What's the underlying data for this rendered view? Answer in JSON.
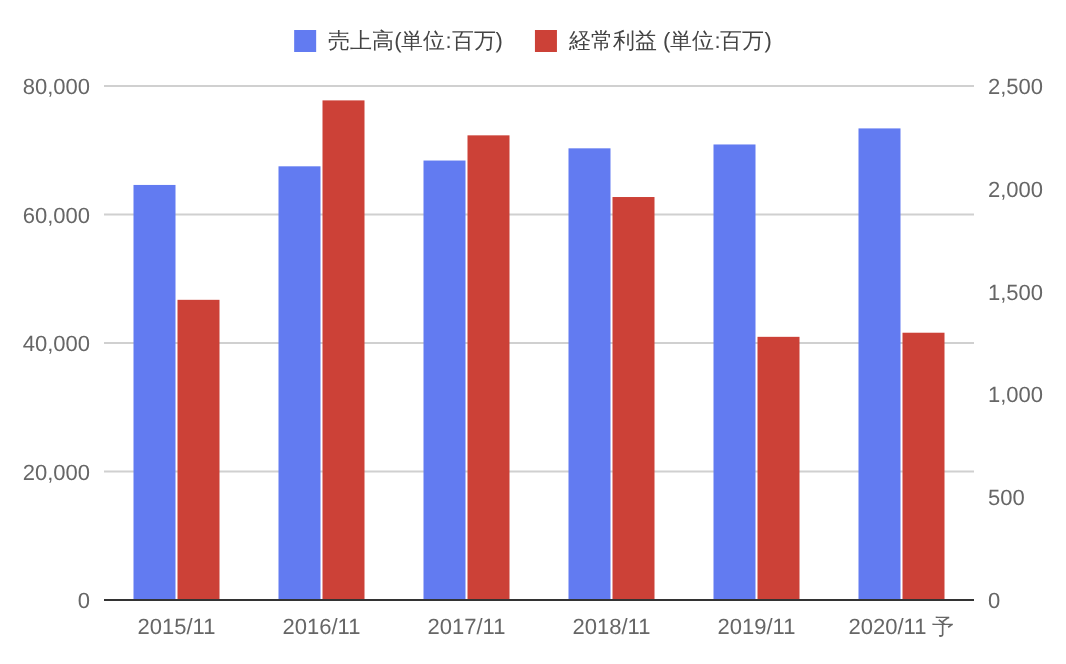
{
  "chart_data": {
    "type": "bar",
    "categories": [
      "2015/11",
      "2016/11",
      "2017/11",
      "2018/11",
      "2019/11",
      "2020/11 予"
    ],
    "series": [
      {
        "name": "売上高(単位:百万)",
        "color": "#627bf1",
        "values": [
          64600,
          67500,
          68400,
          70300,
          70900,
          73400
        ]
      },
      {
        "name": "経常利益 (単位:百万)",
        "color": "#cc4137",
        "axis": "y2",
        "values": [
          1460,
          2430,
          2260,
          1960,
          1280,
          1300
        ]
      }
    ],
    "ylim": [
      0,
      80000
    ],
    "yticks": [
      {
        "value": 0,
        "label": "0"
      },
      {
        "value": 20000,
        "label": "20,000"
      },
      {
        "value": 40000,
        "label": "40,000"
      },
      {
        "value": 60000,
        "label": "60,000"
      },
      {
        "value": 80000,
        "label": "80,000"
      }
    ],
    "y2lim": [
      0,
      2500
    ],
    "y2ticks": [
      {
        "value": 0,
        "label": "0"
      },
      {
        "value": 500,
        "label": "500"
      },
      {
        "value": 1000,
        "label": "1,000"
      },
      {
        "value": 1500,
        "label": "1,500"
      },
      {
        "value": 2000,
        "label": "2,000"
      },
      {
        "value": 2500,
        "label": "2,500"
      }
    ],
    "grid": "y",
    "legend": "top"
  }
}
